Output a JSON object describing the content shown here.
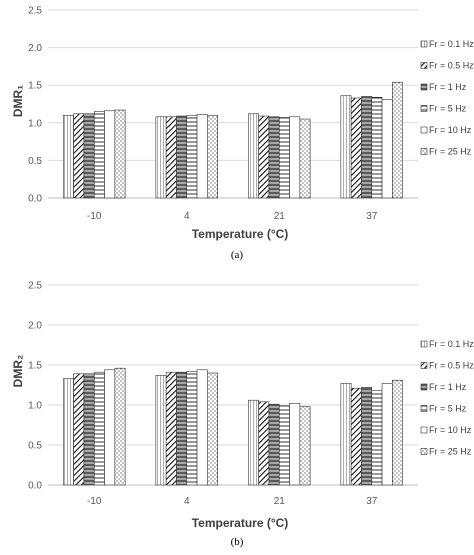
{
  "chart_data": [
    {
      "type": "bar",
      "caption": "(a)",
      "ylabel": "DMR₁",
      "xlabel": "Temperature (°C)",
      "ylim": [
        0,
        2.5
      ],
      "yticks": [
        "0.0",
        "0.5",
        "1.0",
        "1.5",
        "2.0",
        "2.5"
      ],
      "categories": [
        "-10",
        "4",
        "21",
        "37"
      ],
      "grid": "horizontal",
      "legend_position": "right",
      "series": [
        {
          "name": "Fr = 0.1 Hz",
          "pattern": "vlines",
          "values": [
            1.1,
            1.08,
            1.12,
            1.36
          ]
        },
        {
          "name": "Fr = 0.5 Hz",
          "pattern": "diag",
          "values": [
            1.12,
            1.08,
            1.09,
            1.33
          ]
        },
        {
          "name": "Fr = 1 Hz",
          "pattern": "hbands",
          "values": [
            1.12,
            1.09,
            1.08,
            1.35
          ]
        },
        {
          "name": "Fr = 5 Hz",
          "pattern": "hlines",
          "values": [
            1.15,
            1.1,
            1.07,
            1.34
          ]
        },
        {
          "name": "Fr = 10 Hz",
          "pattern": "blank",
          "values": [
            1.16,
            1.11,
            1.08,
            1.31
          ]
        },
        {
          "name": "Fr = 25 Hz",
          "pattern": "dots",
          "values": [
            1.17,
            1.1,
            1.05,
            1.54
          ]
        }
      ]
    },
    {
      "type": "bar",
      "caption": "(b)",
      "ylabel": "DMR₂",
      "xlabel": "Temperature (°C)",
      "ylim": [
        0,
        2.5
      ],
      "yticks": [
        "0.0",
        "0.5",
        "1.0",
        "1.5",
        "2.0",
        "2.5"
      ],
      "categories": [
        "-10",
        "4",
        "21",
        "37"
      ],
      "grid": "horizontal",
      "legend_position": "right",
      "series": [
        {
          "name": "Fr = 0.1 Hz",
          "pattern": "vlines",
          "values": [
            1.33,
            1.37,
            1.06,
            1.27
          ]
        },
        {
          "name": "Fr = 0.5 Hz",
          "pattern": "diag",
          "values": [
            1.39,
            1.41,
            1.04,
            1.21
          ]
        },
        {
          "name": "Fr = 1 Hz",
          "pattern": "hbands",
          "values": [
            1.39,
            1.41,
            1.01,
            1.22
          ]
        },
        {
          "name": "Fr = 5 Hz",
          "pattern": "hlines",
          "values": [
            1.41,
            1.42,
            0.99,
            1.18
          ]
        },
        {
          "name": "Fr = 10 Hz",
          "pattern": "blank",
          "values": [
            1.44,
            1.44,
            1.02,
            1.27
          ]
        },
        {
          "name": "Fr = 25 Hz",
          "pattern": "dots",
          "values": [
            1.46,
            1.4,
            0.98,
            1.31
          ]
        }
      ]
    }
  ]
}
